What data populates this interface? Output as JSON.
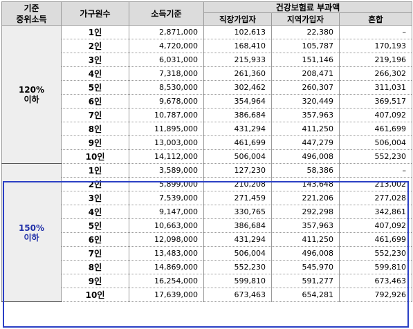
{
  "headers": {
    "criteria": "기준\n중위소득",
    "household": "가구원수",
    "income": "소득기준",
    "premium": "건강보험료 부과액",
    "employee": "직장가입자",
    "regional": "지역가입자",
    "mixed": "혼합"
  },
  "groups": [
    {
      "label": "120%\n이하",
      "rows": [
        {
          "hh": "1인",
          "income": "2,871,000",
          "employee": "102,613",
          "regional": "22,380",
          "mixed": "–"
        },
        {
          "hh": "2인",
          "income": "4,720,000",
          "employee": "168,410",
          "regional": "105,787",
          "mixed": "170,193"
        },
        {
          "hh": "3인",
          "income": "6,031,000",
          "employee": "215,933",
          "regional": "151,146",
          "mixed": "219,196"
        },
        {
          "hh": "4인",
          "income": "7,318,000",
          "employee": "261,360",
          "regional": "208,471",
          "mixed": "266,302"
        },
        {
          "hh": "5인",
          "income": "8,530,000",
          "employee": "302,462",
          "regional": "260,307",
          "mixed": "311,031"
        },
        {
          "hh": "6인",
          "income": "9,678,000",
          "employee": "354,964",
          "regional": "320,449",
          "mixed": "369,517"
        },
        {
          "hh": "7인",
          "income": "10,787,000",
          "employee": "386,684",
          "regional": "357,963",
          "mixed": "407,092"
        },
        {
          "hh": "8인",
          "income": "11,895,000",
          "employee": "431,294",
          "regional": "411,250",
          "mixed": "461,699"
        },
        {
          "hh": "9인",
          "income": "13,003,000",
          "employee": "461,699",
          "regional": "447,279",
          "mixed": "506,004"
        },
        {
          "hh": "10인",
          "income": "14,112,000",
          "employee": "506,004",
          "regional": "496,008",
          "mixed": "552,230"
        }
      ]
    },
    {
      "label": "150%\n이하",
      "rows": [
        {
          "hh": "1인",
          "income": "3,589,000",
          "employee": "127,230",
          "regional": "58,386",
          "mixed": "–"
        },
        {
          "hh": "2인",
          "income": "5,899,000",
          "employee": "210,208",
          "regional": "143,648",
          "mixed": "213,002"
        },
        {
          "hh": "3인",
          "income": "7,539,000",
          "employee": "271,459",
          "regional": "221,206",
          "mixed": "277,028"
        },
        {
          "hh": "4인",
          "income": "9,147,000",
          "employee": "330,765",
          "regional": "292,298",
          "mixed": "342,861"
        },
        {
          "hh": "5인",
          "income": "10,663,000",
          "employee": "386,684",
          "regional": "357,963",
          "mixed": "407,092"
        },
        {
          "hh": "6인",
          "income": "12,098,000",
          "employee": "431,294",
          "regional": "411,250",
          "mixed": "461,699"
        },
        {
          "hh": "7인",
          "income": "13,483,000",
          "employee": "506,004",
          "regional": "496,008",
          "mixed": "552,230"
        },
        {
          "hh": "8인",
          "income": "14,869,000",
          "employee": "552,230",
          "regional": "545,970",
          "mixed": "599,810"
        },
        {
          "hh": "9인",
          "income": "16,254,000",
          "employee": "599,810",
          "regional": "591,277",
          "mixed": "673,463"
        },
        {
          "hh": "10인",
          "income": "17,639,000",
          "employee": "673,463",
          "regional": "654,281",
          "mixed": "792,926"
        }
      ]
    }
  ],
  "colors": {
    "header_bg": "#dcdcdc",
    "group_bg": "#eeeeee",
    "highlight_frame": "#2a3fc4",
    "highlight_text": "#1f2fa8"
  }
}
